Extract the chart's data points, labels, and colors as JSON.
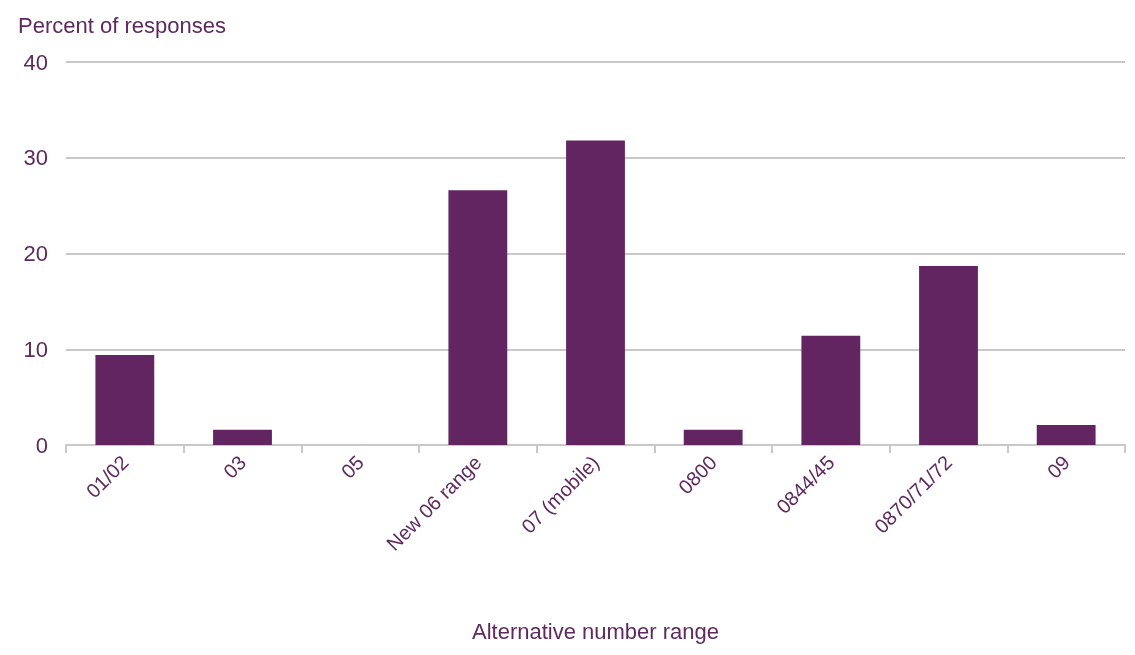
{
  "chart_data": {
    "type": "bar",
    "xlabel": "Alternative number range",
    "ylabel": "Percent of responses",
    "categories": [
      "01/02",
      "03",
      "05",
      "New 06 range",
      "07 (mobile)",
      "0800",
      "0844/45",
      "0870/71/72",
      "09"
    ],
    "values": [
      9.4,
      1.6,
      0,
      26.6,
      31.8,
      1.6,
      11.4,
      18.7,
      2.1
    ],
    "color": "#622562",
    "ylim": [
      0,
      40
    ],
    "yticks": [
      0,
      10,
      20,
      30,
      40
    ],
    "grid": "y"
  }
}
